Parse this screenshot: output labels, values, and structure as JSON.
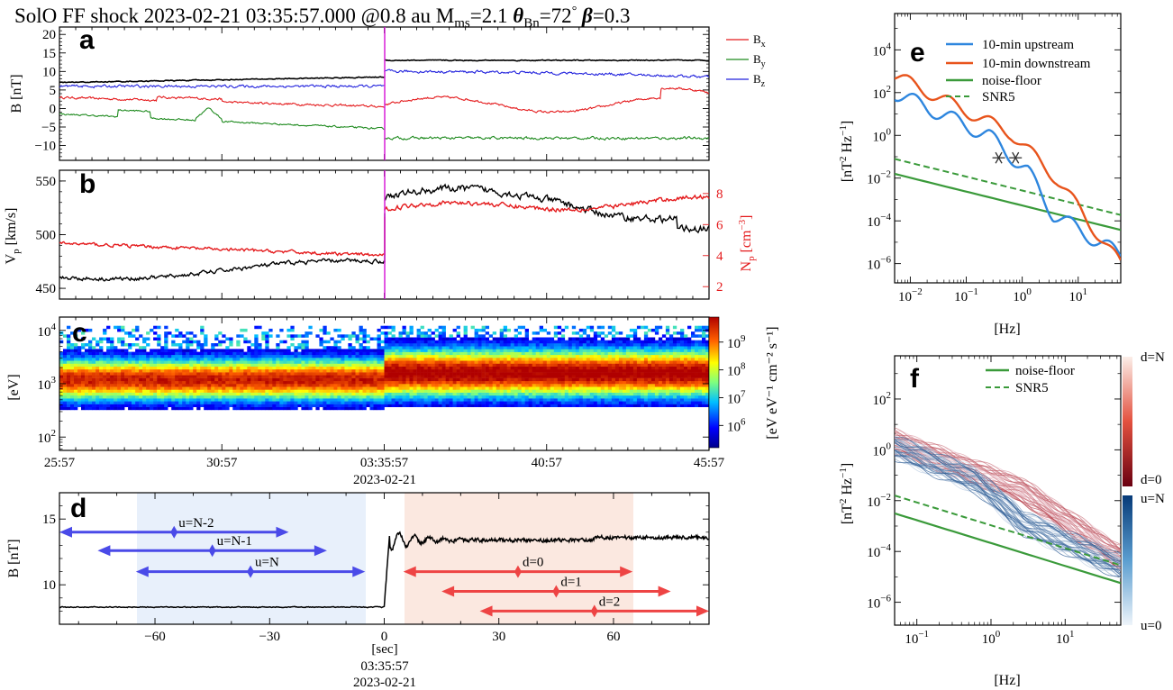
{
  "title": {
    "pre": "SolO FF shock 2023-02-21 03:35:57.000 @0.8 au M",
    "mach_sub": "ms",
    "mach_val": "=2.1 ",
    "theta": "θ",
    "theta_sub": "Bn",
    "theta_val": "=72",
    "deg": "°",
    "beta": " β",
    "beta_val": "=0.3"
  },
  "colors": {
    "bx": "#e41a1c",
    "by": "#1e8a1e",
    "bz": "#2222dd",
    "vp": "#000000",
    "np": "#e41a1c",
    "shock": "#d81fd8",
    "up": "#2e86de",
    "down": "#e8541c",
    "noise": "#3a9a3a",
    "arrow_up": "#4a4ae8",
    "arrow_down": "#ee4444"
  },
  "chart_data": [
    {
      "panel": "a",
      "type": "line",
      "ylabel": "B [nT]",
      "yticks": [
        20,
        15,
        10,
        5,
        0,
        -5,
        -10
      ],
      "ylim": [
        -14,
        22
      ],
      "xlim_min": [
        0,
        20
      ],
      "shock_time_min": 10,
      "series": [
        {
          "name": "B",
          "sub": "x",
          "segments": [
            {
              "t": [
                0,
                10
              ],
              "mean": 2
            },
            {
              "t": [
                10,
                20
              ],
              "mean": 1
            }
          ]
        },
        {
          "name": "B",
          "sub": "y",
          "segments": [
            {
              "t": [
                0,
                10
              ],
              "mean": -3
            },
            {
              "t": [
                10,
                20
              ],
              "mean": -8
            }
          ]
        },
        {
          "name": "B",
          "sub": "z",
          "segments": [
            {
              "t": [
                0,
                10
              ],
              "mean": 6
            },
            {
              "t": [
                10,
                20
              ],
              "mean": 10
            }
          ]
        },
        {
          "name": "|B|",
          "segments": [
            {
              "t": [
                0,
                10
              ],
              "mean": 7
            },
            {
              "t": [
                10,
                20
              ],
              "mean": 13
            }
          ]
        }
      ]
    },
    {
      "panel": "b",
      "type": "line",
      "ylabel_left": "V",
      "ylabel_left_sub": "p",
      "ylabel_left_unit": " [km/s]",
      "ylabel_right": "N",
      "ylabel_right_sub": "p",
      "ylabel_right_unit": " [cm",
      "ylabel_right_sup": "−3",
      "ylabel_right_end": "]",
      "yticks_left": [
        550,
        500,
        450
      ],
      "ylim_left": [
        440,
        560
      ],
      "yticks_right": [
        8,
        6,
        4,
        2
      ],
      "ylim_right": [
        1.2,
        9.5
      ],
      "series": [
        {
          "name": "V_p",
          "segments": [
            {
              "t": [
                0,
                10
              ],
              "start": 460,
              "end": 474
            },
            {
              "t": [
                10,
                20
              ],
              "start": 535,
              "end": 500
            }
          ]
        },
        {
          "name": "N_p",
          "segments": [
            {
              "t": [
                0,
                10
              ],
              "start": 4.8,
              "end": 4.0
            },
            {
              "t": [
                10,
                20
              ],
              "start": 7.0,
              "end": 7.5
            }
          ]
        }
      ]
    },
    {
      "panel": "c",
      "type": "heatmap",
      "ylabel": "[eV]",
      "yticks": [
        "10^4",
        "10^3",
        "10^2"
      ],
      "xticks": [
        "25:57",
        "30:57",
        "03:35:57",
        "40:57",
        "45:57"
      ],
      "xdate": "2023-02-21",
      "cbar_ticks": [
        "10^9",
        "10^8",
        "10^7",
        "10^6"
      ],
      "cbar_label": "[eV eV⁻¹ cm⁻² s⁻¹]"
    },
    {
      "panel": "d",
      "type": "line",
      "ylabel": "B [nT]",
      "yticks": [
        15,
        10
      ],
      "ylim": [
        7,
        17
      ],
      "xticks": [
        -60,
        -30,
        0,
        30,
        60
      ],
      "xlim": [
        -85,
        85
      ],
      "xlabel": "[sec]",
      "xlabel2": "03:35:57",
      "xlabel3": "2023-02-21",
      "B_upstream": 8.3,
      "B_downstream": 13.4,
      "windows": [
        {
          "label": "u=N-2",
          "from": -85,
          "to": -25,
          "B": 14.0
        },
        {
          "label": "u=N-1",
          "from": -75,
          "to": -15,
          "B": 12.6
        },
        {
          "label": "u=N",
          "from": -65,
          "to": -5,
          "B": 11.0
        },
        {
          "label": "d=0",
          "from": 5,
          "to": 65,
          "B": 11.0
        },
        {
          "label": "d=1",
          "from": 15,
          "to": 75,
          "B": 9.5
        },
        {
          "label": "d=2",
          "from": 25,
          "to": 85,
          "B": 8.0
        }
      ]
    },
    {
      "panel": "e",
      "type": "line",
      "scale": "log-log",
      "ylabel": "[nT",
      "ylabel_sup1": "2",
      "ylabel_mid": " Hz",
      "ylabel_sup2": "−1",
      "ylabel_end": "]",
      "xlabel": "[Hz]",
      "xticks": [
        "10^-2",
        "10^-1",
        "10^0",
        "10^1"
      ],
      "yticks": [
        "10^4",
        "10^2",
        "10^0",
        "10^-2",
        "10^-4",
        "10^-6"
      ],
      "series": [
        {
          "name": "10-min upstream"
        },
        {
          "name": "10-min downstream"
        },
        {
          "name": "noise-floor"
        },
        {
          "name": "SNR5"
        }
      ]
    },
    {
      "panel": "f",
      "type": "line",
      "scale": "log-log",
      "ylabel": "[nT",
      "ylabel_sup1": "2",
      "ylabel_mid": " Hz",
      "ylabel_sup2": "−1",
      "ylabel_end": "]",
      "xlabel": "[Hz]",
      "xticks": [
        "10^-1",
        "10^0",
        "10^1"
      ],
      "yticks": [
        "10^2",
        "10^0",
        "10^-2",
        "10^-4",
        "10^-6"
      ],
      "series": [
        {
          "name": "noise-floor"
        },
        {
          "name": "SNR5"
        }
      ],
      "cbar_labels": [
        "d=N",
        "d=0",
        "u=N",
        "u=0"
      ]
    }
  ]
}
